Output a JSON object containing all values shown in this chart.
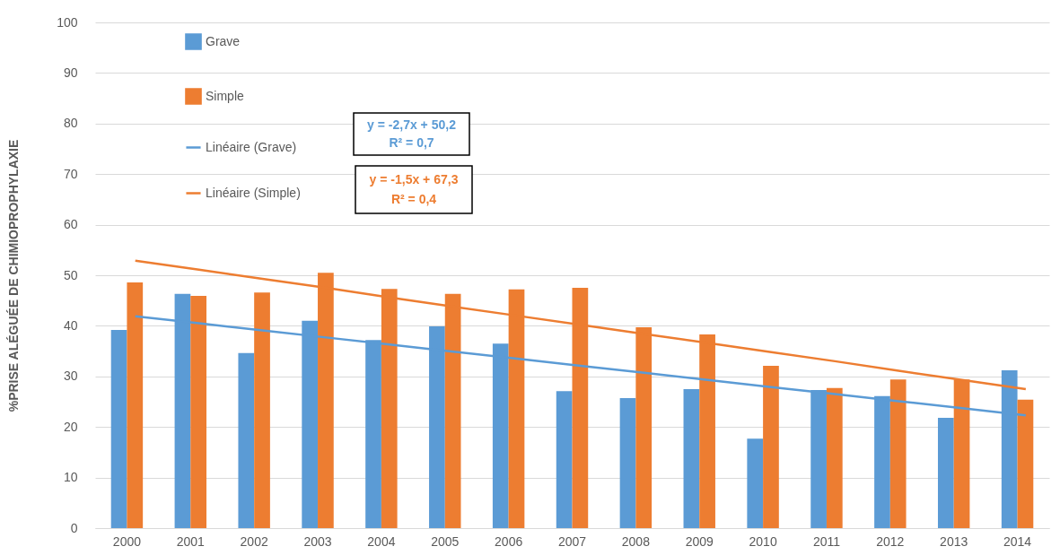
{
  "chart_data": {
    "type": "bar",
    "ylabel": "%PRISE ALÉGUÉE DE CHIMIOPROPHYLAXIE",
    "categories": [
      "2000",
      "2001",
      "2002",
      "2003",
      "2004",
      "2005",
      "2006",
      "2007",
      "2008",
      "2009",
      "2010",
      "2011",
      "2012",
      "2013",
      "2014"
    ],
    "series": [
      {
        "name": "Grave",
        "color": "#5b9bd5",
        "values": [
          39.2,
          46.3,
          34.6,
          41,
          37.2,
          39.9,
          36.5,
          27.1,
          25.7,
          27.5,
          17.7,
          27.3,
          26.1,
          21.8,
          31.2
        ]
      },
      {
        "name": "Simple",
        "color": "#ed7d31",
        "values": [
          48.6,
          45.9,
          46.6,
          50.5,
          47.3,
          46.3,
          47.2,
          47.5,
          39.7,
          38.3,
          32.1,
          27.7,
          29.4,
          29.4,
          25.4
        ]
      },
      {
        "name": "Linéaire (Grave)",
        "type": "line",
        "color": "#5b9bd5",
        "values": [
          41.9,
          40.5,
          39.1,
          37.7,
          36.3,
          34.9,
          33.5,
          32.1,
          30.7,
          29.3,
          27.9,
          26.5,
          25.1,
          23.7,
          22.3
        ]
      },
      {
        "name": "Linéaire (Simple)",
        "type": "line",
        "color": "#ed7d31",
        "values": [
          52.9,
          51.1,
          49.3,
          47.5,
          45.6,
          43.8,
          42.0,
          40.2,
          38.4,
          36.6,
          34.8,
          33.0,
          31.1,
          29.3,
          27.5
        ]
      }
    ],
    "ylim": [
      0,
      100
    ],
    "yticks": [
      0,
      10,
      20,
      30,
      40,
      50,
      60,
      70,
      80,
      90,
      100
    ],
    "grid": "y",
    "legend": "top left",
    "annotations": [
      "y = -2,7x + 50,2",
      "R² = 0,7",
      "y = -1,5x + 67,3",
      "R² = 0,4"
    ]
  }
}
